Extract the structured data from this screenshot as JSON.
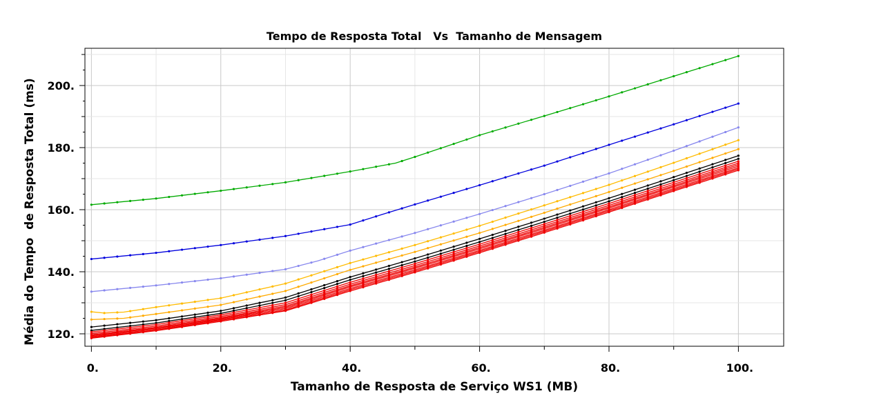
{
  "chart_data": {
    "type": "line",
    "title": "Tempo de Resposta Total   Vs  Tamanho de Mensagem",
    "xlabel": "Tamanho de Resposta de Serviço WS1 (MB)",
    "ylabel": "Média do Tempo  de Resposta Total (ms)",
    "xlim": [
      -1,
      107
    ],
    "ylim": [
      116,
      212
    ],
    "x_ticks": [
      0,
      20,
      40,
      60,
      80,
      100
    ],
    "x_tick_labels": [
      "0.",
      "20.",
      "40.",
      "60.",
      "80.",
      "100."
    ],
    "y_ticks": [
      120,
      140,
      160,
      180,
      200
    ],
    "y_tick_labels": [
      "120.",
      "140.",
      "160.",
      "180.",
      "200."
    ],
    "grid": true,
    "series": [
      {
        "color": "#00aa00",
        "points": [
          [
            0,
            161.6
          ],
          [
            10,
            163.6
          ],
          [
            20,
            166.1
          ],
          [
            30,
            168.8
          ],
          [
            40,
            172.3
          ],
          [
            47,
            175.0
          ],
          [
            50,
            177.0
          ],
          [
            60,
            184.0
          ],
          [
            70,
            190.2
          ],
          [
            80,
            196.5
          ],
          [
            90,
            203.0
          ],
          [
            100,
            209.5
          ]
        ]
      },
      {
        "color": "#0000dd",
        "points": [
          [
            0,
            144.1
          ],
          [
            10,
            146.1
          ],
          [
            20,
            148.6
          ],
          [
            30,
            151.5
          ],
          [
            40,
            155.2
          ],
          [
            45,
            158.5
          ],
          [
            50,
            161.7
          ],
          [
            60,
            167.9
          ],
          [
            70,
            174.2
          ],
          [
            80,
            180.9
          ],
          [
            90,
            187.5
          ],
          [
            100,
            194.2
          ]
        ]
      },
      {
        "color": "#8888ee",
        "points": [
          [
            0,
            133.6
          ],
          [
            10,
            135.6
          ],
          [
            20,
            137.9
          ],
          [
            30,
            140.8
          ],
          [
            35,
            143.5
          ],
          [
            40,
            146.8
          ],
          [
            50,
            152.5
          ],
          [
            60,
            158.6
          ],
          [
            70,
            165.0
          ],
          [
            80,
            171.7
          ],
          [
            90,
            179.0
          ],
          [
            100,
            186.5
          ]
        ]
      },
      {
        "color": "#ffbb00",
        "points": [
          [
            0,
            127.1
          ],
          [
            2,
            126.7
          ],
          [
            5,
            127.0
          ],
          [
            10,
            128.6
          ],
          [
            20,
            131.5
          ],
          [
            30,
            136.2
          ],
          [
            40,
            142.8
          ],
          [
            50,
            148.6
          ],
          [
            60,
            154.8
          ],
          [
            70,
            161.4
          ],
          [
            80,
            168.0
          ],
          [
            90,
            175.1
          ],
          [
            100,
            182.4
          ]
        ]
      },
      {
        "color": "#ffaa00",
        "points": [
          [
            0,
            124.6
          ],
          [
            5,
            125.0
          ],
          [
            10,
            126.4
          ],
          [
            20,
            129.3
          ],
          [
            30,
            133.8
          ],
          [
            40,
            140.6
          ],
          [
            50,
            146.4
          ],
          [
            60,
            152.5
          ],
          [
            70,
            159.0
          ],
          [
            80,
            165.7
          ],
          [
            90,
            172.5
          ],
          [
            100,
            179.5
          ]
        ]
      },
      {
        "color": "#000000",
        "points": [
          [
            0,
            122.2
          ],
          [
            10,
            124.4
          ],
          [
            20,
            127.4
          ],
          [
            30,
            131.7
          ],
          [
            40,
            138.3
          ],
          [
            50,
            144.3
          ],
          [
            60,
            150.6
          ],
          [
            70,
            157.1
          ],
          [
            80,
            163.7
          ],
          [
            90,
            170.5
          ],
          [
            100,
            177.4
          ]
        ]
      },
      {
        "color": "#000000",
        "points": [
          [
            0,
            121.1
          ],
          [
            10,
            123.5
          ],
          [
            20,
            126.6
          ],
          [
            30,
            130.8
          ],
          [
            40,
            137.4
          ],
          [
            50,
            143.3
          ],
          [
            60,
            149.6
          ],
          [
            70,
            156.1
          ],
          [
            80,
            162.7
          ],
          [
            90,
            169.5
          ],
          [
            100,
            176.4
          ]
        ]
      },
      {
        "color": "#ee0000",
        "points": [
          [
            0,
            120.6
          ],
          [
            10,
            123.0
          ],
          [
            20,
            126.1
          ],
          [
            30,
            130.0
          ],
          [
            40,
            136.6
          ],
          [
            50,
            142.6
          ],
          [
            60,
            148.9
          ],
          [
            70,
            155.4
          ],
          [
            80,
            162.0
          ],
          [
            90,
            168.8
          ],
          [
            100,
            175.6
          ]
        ]
      },
      {
        "color": "#ee0000",
        "points": [
          [
            0,
            120.1
          ],
          [
            10,
            122.5
          ],
          [
            20,
            125.6
          ],
          [
            30,
            129.4
          ],
          [
            40,
            136.0
          ],
          [
            50,
            142.0
          ],
          [
            60,
            148.3
          ],
          [
            70,
            154.8
          ],
          [
            80,
            161.4
          ],
          [
            90,
            168.2
          ],
          [
            100,
            175.0
          ]
        ]
      },
      {
        "color": "#ee0000",
        "points": [
          [
            0,
            119.7
          ],
          [
            10,
            122.1
          ],
          [
            20,
            125.2
          ],
          [
            30,
            128.9
          ],
          [
            40,
            135.5
          ],
          [
            50,
            141.5
          ],
          [
            60,
            147.8
          ],
          [
            70,
            154.3
          ],
          [
            80,
            160.9
          ],
          [
            90,
            167.7
          ],
          [
            100,
            174.5
          ]
        ]
      },
      {
        "color": "#ee0000",
        "points": [
          [
            0,
            119.4
          ],
          [
            10,
            121.8
          ],
          [
            20,
            124.9
          ],
          [
            30,
            128.5
          ],
          [
            40,
            135.1
          ],
          [
            50,
            141.1
          ],
          [
            60,
            147.4
          ],
          [
            70,
            153.9
          ],
          [
            80,
            160.5
          ],
          [
            90,
            167.3
          ],
          [
            100,
            174.0
          ]
        ]
      },
      {
        "color": "#ee0000",
        "points": [
          [
            0,
            119.1
          ],
          [
            10,
            121.5
          ],
          [
            20,
            124.6
          ],
          [
            30,
            128.1
          ],
          [
            40,
            134.6
          ],
          [
            50,
            140.6
          ],
          [
            60,
            146.9
          ],
          [
            70,
            153.4
          ],
          [
            80,
            160.0
          ],
          [
            90,
            166.8
          ],
          [
            100,
            173.5
          ]
        ]
      },
      {
        "color": "#ee0000",
        "points": [
          [
            0,
            118.8
          ],
          [
            10,
            121.2
          ],
          [
            20,
            124.3
          ],
          [
            30,
            127.7
          ],
          [
            40,
            134.2
          ],
          [
            50,
            140.2
          ],
          [
            60,
            146.5
          ],
          [
            70,
            153.0
          ],
          [
            80,
            159.6
          ],
          [
            90,
            166.4
          ],
          [
            100,
            173.1
          ]
        ]
      },
      {
        "color": "#ee0000",
        "points": [
          [
            0,
            118.6
          ],
          [
            10,
            121.0
          ],
          [
            20,
            124.0
          ],
          [
            30,
            127.4
          ],
          [
            40,
            133.8
          ],
          [
            50,
            139.8
          ],
          [
            60,
            146.1
          ],
          [
            70,
            152.6
          ],
          [
            80,
            159.2
          ],
          [
            90,
            166.0
          ],
          [
            100,
            172.7
          ]
        ]
      }
    ]
  }
}
